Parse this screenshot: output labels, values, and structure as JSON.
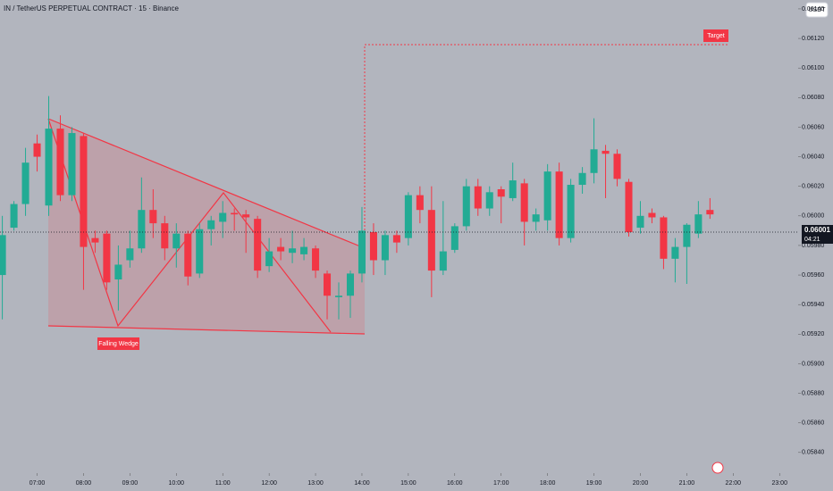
{
  "chart_data": {
    "type": "candlestick",
    "title": "IN / TetherUS PERPETUAL CONTRACT · 15 · Binance",
    "currency": "USDT",
    "annotations": [
      "Falling Wedge",
      "Target"
    ],
    "current_price": {
      "value": 0.06001,
      "label": "0.06001"
    },
    "countdown": "04:21",
    "up_color": "#22ab94",
    "down_color": "#f23645",
    "x": [
      6.25,
      6.5,
      6.75,
      7.0,
      7.25,
      7.5,
      7.75,
      8.0,
      8.25,
      8.5,
      8.75,
      9.0,
      9.25,
      9.5,
      9.75,
      10.0,
      10.25,
      10.5,
      10.75,
      11.0,
      11.25,
      11.5,
      11.75,
      12.0,
      12.25,
      12.5,
      12.75,
      13.0,
      13.25,
      13.5,
      13.75,
      14.0,
      14.25,
      14.5,
      14.75,
      15.0,
      15.25,
      15.5,
      15.75,
      16.0,
      16.25,
      16.5,
      16.75,
      17.0,
      17.25,
      17.5,
      17.75,
      18.0,
      18.25,
      18.5,
      18.75,
      19.0,
      19.25,
      19.5,
      19.75,
      20.0,
      20.25,
      20.5,
      20.75,
      21.0,
      21.25,
      21.5
    ],
    "open": [
      0.0596,
      0.05992,
      0.06008,
      0.06049,
      0.06007,
      0.06059,
      0.06014,
      0.06054,
      0.05985,
      0.05988,
      0.05957,
      0.0597,
      0.05978,
      0.06004,
      0.05995,
      0.05978,
      0.05988,
      0.05961,
      0.05991,
      0.05996,
      0.06002,
      0.06001,
      0.05998,
      0.05966,
      0.05979,
      0.05975,
      0.05974,
      0.05978,
      0.05961,
      0.05945,
      0.05946,
      0.05961,
      0.05989,
      0.0597,
      0.05987,
      0.05985,
      0.06014,
      0.06004,
      0.05963,
      0.05977,
      0.05993,
      0.0602,
      0.06005,
      0.06018,
      0.06012,
      0.06022,
      0.05996,
      0.05997,
      0.0603,
      0.05985,
      0.06021,
      0.06029,
      0.06044,
      0.06042,
      0.06023,
      0.05992,
      0.06002,
      0.05999,
      0.05971,
      0.05979,
      0.05988,
      0.06004
    ],
    "high": [
      0.06,
      0.0601,
      0.06046,
      0.06055,
      0.06081,
      0.06068,
      0.0606,
      0.06056,
      0.0599,
      0.0599,
      0.0598,
      0.0599,
      0.06026,
      0.06018,
      0.06,
      0.05995,
      0.0599,
      0.05995,
      0.06,
      0.0601,
      0.06005,
      0.06004,
      0.06,
      0.05985,
      0.05985,
      0.0599,
      0.05985,
      0.0598,
      0.05963,
      0.05955,
      0.05963,
      0.06006,
      0.05995,
      0.0599,
      0.0599,
      0.06016,
      0.0602,
      0.0602,
      0.0601,
      0.05995,
      0.06025,
      0.06025,
      0.0602,
      0.0602,
      0.06036,
      0.06025,
      0.06005,
      0.06035,
      0.06036,
      0.06025,
      0.06033,
      0.06066,
      0.06048,
      0.06045,
      0.06025,
      0.0601,
      0.06005,
      0.06,
      0.05985,
      0.05995,
      0.0601,
      0.06012
    ],
    "low": [
      0.0593,
      0.0599,
      0.06,
      0.0603,
      0.06,
      0.0601,
      0.0601,
      0.0595,
      0.05975,
      0.0595,
      0.05936,
      0.05965,
      0.05975,
      0.05985,
      0.0597,
      0.05965,
      0.05953,
      0.05958,
      0.0598,
      0.05985,
      0.0599,
      0.05975,
      0.05958,
      0.05962,
      0.0597,
      0.05968,
      0.0597,
      0.05958,
      0.0593,
      0.0593,
      0.05931,
      0.05955,
      0.0596,
      0.0596,
      0.05975,
      0.0598,
      0.05995,
      0.05945,
      0.0596,
      0.05975,
      0.0599,
      0.06,
      0.06,
      0.05995,
      0.0601,
      0.0598,
      0.0599,
      0.0599,
      0.0598,
      0.05982,
      0.06015,
      0.06022,
      0.06012,
      0.0602,
      0.05986,
      0.05988,
      0.05995,
      0.05964,
      0.05955,
      0.05954,
      0.05985,
      0.05998
    ],
    "close": [
      0.05987,
      0.06008,
      0.06036,
      0.0604,
      0.06059,
      0.06014,
      0.06056,
      0.05979,
      0.05982,
      0.05955,
      0.05967,
      0.05978,
      0.06004,
      0.05995,
      0.05978,
      0.05988,
      0.05959,
      0.05991,
      0.05997,
      0.06002,
      0.06001,
      0.05999,
      0.05963,
      0.05976,
      0.05976,
      0.05978,
      0.05979,
      0.05963,
      0.05946,
      0.05946,
      0.05961,
      0.0599,
      0.0597,
      0.05987,
      0.05982,
      0.06014,
      0.06004,
      0.05963,
      0.05976,
      0.05993,
      0.0602,
      0.06005,
      0.06016,
      0.06013,
      0.06024,
      0.05996,
      0.06001,
      0.0603,
      0.05985,
      0.06021,
      0.06029,
      0.06045,
      0.06042,
      0.06025,
      0.05989,
      0.06,
      0.05999,
      0.05971,
      0.05979,
      0.05994,
      0.06001,
      0.06001
    ],
    "xlim": [
      6.2,
      23.4
    ],
    "ylim": [
      0.06146,
      0.05826
    ],
    "yticks": [
      {
        "value": 0.0614,
        "label": "0.06140"
      },
      {
        "value": 0.0612,
        "label": "0.06120"
      },
      {
        "value": 0.061,
        "label": "0.06100"
      },
      {
        "value": 0.0608,
        "label": "0.06080"
      },
      {
        "value": 0.0606,
        "label": "0.06060"
      },
      {
        "value": 0.0604,
        "label": "0.06040"
      },
      {
        "value": 0.0602,
        "label": "0.06020"
      },
      {
        "value": 0.06,
        "label": "0.06000"
      },
      {
        "value": 0.0598,
        "label": "0.05980"
      },
      {
        "value": 0.0596,
        "label": "0.05960"
      },
      {
        "value": 0.0594,
        "label": "0.05940"
      },
      {
        "value": 0.0592,
        "label": "0.05920"
      },
      {
        "value": 0.059,
        "label": "0.05900"
      },
      {
        "value": 0.0588,
        "label": "0.05880"
      },
      {
        "value": 0.0586,
        "label": "0.05860"
      },
      {
        "value": 0.0584,
        "label": "0.05840"
      }
    ],
    "xticks": [
      {
        "value": 7,
        "label": "07:00"
      },
      {
        "value": 8,
        "label": "08:00"
      },
      {
        "value": 9,
        "label": "09:00"
      },
      {
        "value": 10,
        "label": "10:00"
      },
      {
        "value": 11,
        "label": "11:00"
      },
      {
        "value": 12,
        "label": "12:00"
      },
      {
        "value": 13,
        "label": "13:00"
      },
      {
        "value": 14,
        "label": "14:00"
      },
      {
        "value": 15,
        "label": "15:00"
      },
      {
        "value": 16,
        "label": "16:00"
      },
      {
        "value": 17,
        "label": "17:00"
      },
      {
        "value": 18,
        "label": "18:00"
      },
      {
        "value": 19,
        "label": "19:00"
      },
      {
        "value": 20,
        "label": "20:00"
      },
      {
        "value": 21,
        "label": "21:00"
      },
      {
        "value": 22,
        "label": "22:00"
      },
      {
        "value": 23,
        "label": "23:00"
      }
    ]
  }
}
